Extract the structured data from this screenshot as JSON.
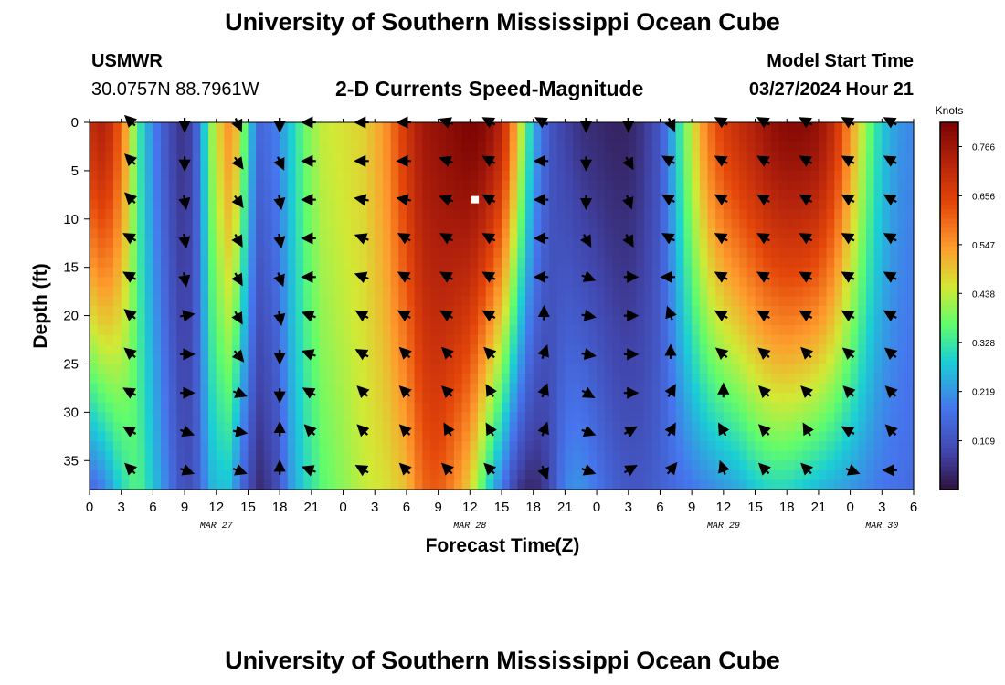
{
  "header": {
    "title": "University of Southern Mississippi Ocean Cube",
    "station": "USMWR",
    "coordinates": "30.0757N  88.7961W",
    "subtitle": "2-D Currents Speed-Magnitude",
    "model_start_label": "Model Start Time",
    "model_start_value": "03/27/2024 Hour 21"
  },
  "footer": {
    "title": "University of Southern Mississippi Ocean Cube"
  },
  "chart_data": {
    "type": "heatmap",
    "title": "2-D Currents Speed-Magnitude",
    "xlabel": "Forecast Time(Z)",
    "ylabel": "Depth (ft)",
    "x_range_hours": [
      0,
      78
    ],
    "y_range_ft": [
      0,
      38
    ],
    "x_ticks": [
      {
        "h": 0,
        "label": "0"
      },
      {
        "h": 3,
        "label": "3"
      },
      {
        "h": 6,
        "label": "6"
      },
      {
        "h": 9,
        "label": "9"
      },
      {
        "h": 12,
        "label": "12"
      },
      {
        "h": 15,
        "label": "15"
      },
      {
        "h": 18,
        "label": "18"
      },
      {
        "h": 21,
        "label": "21"
      },
      {
        "h": 24,
        "label": "0"
      },
      {
        "h": 27,
        "label": "3"
      },
      {
        "h": 30,
        "label": "6"
      },
      {
        "h": 33,
        "label": "9"
      },
      {
        "h": 36,
        "label": "12"
      },
      {
        "h": 39,
        "label": "15"
      },
      {
        "h": 42,
        "label": "18"
      },
      {
        "h": 45,
        "label": "21"
      },
      {
        "h": 48,
        "label": "0"
      },
      {
        "h": 51,
        "label": "3"
      },
      {
        "h": 54,
        "label": "6"
      },
      {
        "h": 57,
        "label": "9"
      },
      {
        "h": 60,
        "label": "12"
      },
      {
        "h": 63,
        "label": "15"
      },
      {
        "h": 66,
        "label": "18"
      },
      {
        "h": 69,
        "label": "21"
      },
      {
        "h": 72,
        "label": "0"
      },
      {
        "h": 75,
        "label": "3"
      },
      {
        "h": 78,
        "label": "6"
      }
    ],
    "date_labels": [
      {
        "h": 12,
        "label": "MAR 27"
      },
      {
        "h": 36,
        "label": "MAR 28"
      },
      {
        "h": 60,
        "label": "MAR 29"
      },
      {
        "h": 75,
        "label": "MAR 30"
      }
    ],
    "y_ticks": [
      0,
      5,
      10,
      15,
      20,
      25,
      30,
      35
    ],
    "colorbar": {
      "unit_label": "Knots",
      "range": [
        0.0,
        0.82
      ],
      "ticks": [
        "0.766",
        "0.656",
        "0.547",
        "0.438",
        "0.328",
        "0.219",
        "0.109"
      ],
      "tick_values": [
        0.766,
        0.656,
        0.547,
        0.438,
        0.328,
        0.219,
        0.109
      ]
    },
    "speed_profile_hours": [
      0,
      1.5,
      3,
      4.5,
      6,
      7.5,
      8.5,
      9.2,
      10,
      11.5,
      13,
      14,
      15,
      16,
      17.5,
      19,
      20.5,
      22,
      24,
      26,
      28,
      30,
      31.5,
      33,
      34.5,
      36,
      37.5,
      39,
      40.5,
      42,
      43.5,
      45,
      46.5,
      48,
      49.5,
      51,
      52.5,
      54,
      55.5,
      57,
      58.5,
      60,
      61.5,
      63,
      64.5,
      66,
      67.5,
      69,
      70.5,
      72,
      73.5,
      75,
      76.5,
      78
    ],
    "speed_profile_surface": [
      0.7,
      0.74,
      0.6,
      0.35,
      0.2,
      0.1,
      0.06,
      0.06,
      0.12,
      0.4,
      0.55,
      0.5,
      0.3,
      0.15,
      0.18,
      0.28,
      0.38,
      0.44,
      0.46,
      0.48,
      0.55,
      0.68,
      0.76,
      0.78,
      0.8,
      0.82,
      0.8,
      0.72,
      0.5,
      0.25,
      0.12,
      0.08,
      0.05,
      0.04,
      0.03,
      0.03,
      0.06,
      0.12,
      0.28,
      0.45,
      0.58,
      0.66,
      0.7,
      0.74,
      0.78,
      0.8,
      0.8,
      0.78,
      0.7,
      0.55,
      0.4,
      0.28,
      0.22,
      0.2
    ],
    "speed_profile_bottom": [
      0.15,
      0.2,
      0.3,
      0.36,
      0.28,
      0.18,
      0.12,
      0.1,
      0.12,
      0.25,
      0.28,
      0.2,
      0.1,
      0.04,
      0.08,
      0.22,
      0.3,
      0.36,
      0.4,
      0.44,
      0.46,
      0.5,
      0.6,
      0.62,
      0.56,
      0.48,
      0.32,
      0.18,
      0.06,
      0.03,
      0.08,
      0.2,
      0.22,
      0.18,
      0.14,
      0.12,
      0.12,
      0.14,
      0.16,
      0.18,
      0.2,
      0.22,
      0.24,
      0.28,
      0.3,
      0.3,
      0.28,
      0.26,
      0.24,
      0.22,
      0.2,
      0.18,
      0.17,
      0.16
    ],
    "arrow_columns_hours": [
      4,
      9,
      14,
      18,
      21,
      26,
      30,
      34,
      38,
      43,
      47,
      51,
      55,
      60,
      64,
      68,
      72,
      76
    ],
    "arrow_rows_ft": [
      0,
      4,
      8,
      12,
      16,
      20,
      24,
      28,
      32,
      36
    ],
    "arrow_directions_deg": [
      [
        315,
        180,
        155,
        180,
        270,
        270,
        270,
        290,
        300,
        300,
        180,
        180,
        155,
        300,
        300,
        300,
        300,
        300
      ],
      [
        315,
        180,
        145,
        155,
        270,
        270,
        270,
        290,
        300,
        270,
        180,
        150,
        300,
        300,
        300,
        300,
        300,
        300
      ],
      [
        315,
        170,
        145,
        170,
        270,
        280,
        280,
        290,
        300,
        270,
        180,
        160,
        300,
        300,
        300,
        300,
        300,
        300
      ],
      [
        300,
        170,
        150,
        170,
        270,
        290,
        300,
        300,
        300,
        270,
        150,
        150,
        300,
        300,
        300,
        300,
        300,
        300
      ],
      [
        300,
        170,
        150,
        160,
        270,
        290,
        300,
        300,
        300,
        270,
        110,
        90,
        270,
        300,
        300,
        300,
        300,
        300
      ],
      [
        310,
        80,
        150,
        170,
        290,
        300,
        300,
        300,
        300,
        0,
        100,
        90,
        340,
        300,
        300,
        300,
        300,
        300
      ],
      [
        310,
        90,
        140,
        180,
        290,
        300,
        315,
        315,
        315,
        20,
        100,
        90,
        0,
        310,
        310,
        315,
        310,
        310
      ],
      [
        300,
        90,
        110,
        180,
        300,
        315,
        315,
        315,
        330,
        20,
        120,
        90,
        30,
        0,
        315,
        315,
        315,
        315
      ],
      [
        300,
        110,
        100,
        0,
        315,
        315,
        315,
        330,
        330,
        20,
        110,
        60,
        30,
        330,
        315,
        330,
        300,
        315
      ],
      [
        315,
        110,
        110,
        0,
        290,
        300,
        315,
        315,
        315,
        160,
        110,
        60,
        40,
        340,
        315,
        315,
        110,
        270
      ]
    ],
    "marker": {
      "hour": 36.5,
      "depth_ft": 8
    }
  }
}
